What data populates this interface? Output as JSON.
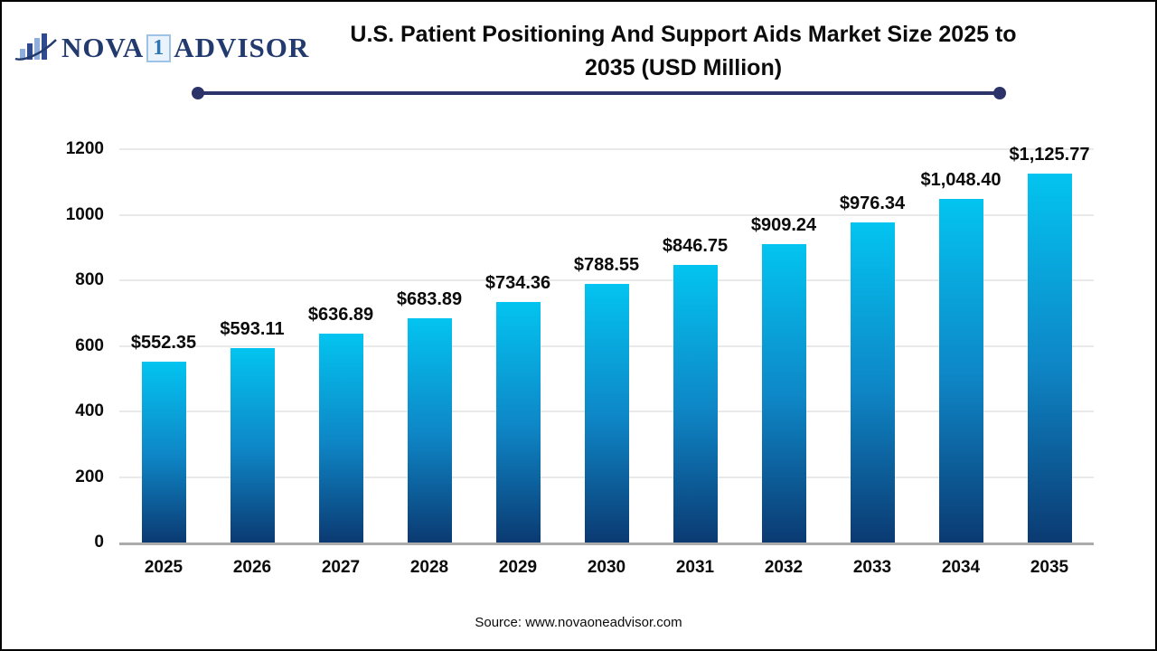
{
  "logo": {
    "part1": "NOVA",
    "boxed": "1",
    "part2": "ADVISOR",
    "icon": "bar-chart-swoosh-icon",
    "colors": {
      "navy": "#223A6E",
      "light_blue": "#9DC3E6",
      "digit_blue": "#2E75B6"
    }
  },
  "title": {
    "line1": "U.S. Patient Positioning And Support Aids Market Size 2025 to",
    "line2": "2035 (USD Million)"
  },
  "source": "Source: www.novaoneadvisor.com",
  "colors": {
    "bar_gradient_top": "#03C4F0",
    "bar_gradient_mid": "#0E86C6",
    "bar_gradient_bottom": "#0B3A72",
    "title_rule": "#2B3368",
    "gridline": "#E9E9E9",
    "axis_line": "#ABABAB",
    "text": "#0b0b0b"
  },
  "chart_data": {
    "type": "bar",
    "title": "U.S. Patient Positioning And Support Aids Market Size 2025 to 2035 (USD Million)",
    "categories": [
      "2025",
      "2026",
      "2027",
      "2028",
      "2029",
      "2030",
      "2031",
      "2032",
      "2033",
      "2034",
      "2035"
    ],
    "values": [
      552.35,
      593.11,
      636.89,
      683.89,
      734.36,
      788.55,
      846.75,
      909.24,
      976.34,
      1048.4,
      1125.77
    ],
    "value_labels": [
      "$552.35",
      "$593.11",
      "$636.89",
      "$683.89",
      "$734.36",
      "$788.55",
      "$846.75",
      "$909.24",
      "$976.34",
      "$1,048.40",
      "$1,125.77"
    ],
    "yticks": [
      0,
      200,
      400,
      600,
      800,
      1000,
      1200
    ],
    "ylim": [
      0,
      1200
    ],
    "xlabel": "",
    "ylabel": "",
    "grid": "horizontal",
    "legend": "none",
    "unit": "USD Million"
  }
}
